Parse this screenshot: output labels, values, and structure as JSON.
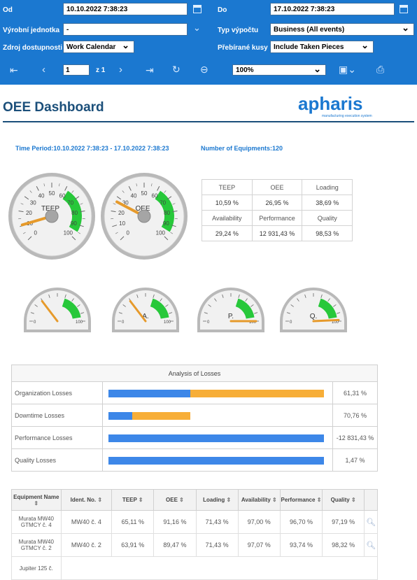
{
  "toolbar": {
    "od_label": "Od",
    "od_value": "10.10.2022 7:38:23",
    "do_label": "Do",
    "do_value": "17.10.2022 7:38:23",
    "unit_label": "Výrobní jednotka",
    "unit_value": "-",
    "calc_label": "Typ výpočtu",
    "calc_value": "Business (All events)",
    "source_label": "Zdroj dostupnosti",
    "source_value": "Work Calendar",
    "pieces_label": "Přebírané kusy",
    "pieces_value": "Include Taken Pieces",
    "page_value": "1",
    "page_of": "z 1",
    "zoom_value": "100%",
    "accent": "#1b78d0"
  },
  "report": {
    "title": "OEE Dashboard",
    "logo_text": "apharis",
    "logo_sub": "manufacturing execution system",
    "time_period": "Time Period:10.10.2022 7:38:23 - 17.10.2022 7:38:23",
    "equipments": "Number of Equipments:120",
    "gauges_top": [
      {
        "label": "TEEP",
        "value": 10.59
      },
      {
        "label": "OEE",
        "value": 26.95
      }
    ],
    "gauges_bottom": [
      {
        "label": "",
        "value": 29.24
      },
      {
        "label": "A.",
        "value": 29.24
      },
      {
        "label": "P.",
        "value": 100
      },
      {
        "label": "Q.",
        "value": 98.53
      }
    ],
    "gauge_ticks": [
      "0",
      "10",
      "20",
      "30",
      "40",
      "50",
      "60",
      "70",
      "80",
      "90",
      "100"
    ],
    "small_ticks": [
      "0",
      "100"
    ],
    "kpi": {
      "h1": [
        "TEEP",
        "OEE",
        "Loading"
      ],
      "v1": [
        "10,59 %",
        "26,95 %",
        "38,69 %"
      ],
      "h2": [
        "Availability",
        "Performance",
        "Quality"
      ],
      "v2": [
        "29,24 %",
        "12 931,43 %",
        "98,53 %"
      ]
    },
    "losses": {
      "title": "Analysis of Losses",
      "rows": [
        {
          "name": "Organization Losses",
          "value": "61,31 %",
          "blue": 38,
          "orange": 100
        },
        {
          "name": "Downtime Losses",
          "value": "70,76 %",
          "blue": 11,
          "orange": 38
        },
        {
          "name": "Performance Losses",
          "value": "-12 831,43 %",
          "blue": 100,
          "orange": 0
        },
        {
          "name": "Quality Losses",
          "value": "1,47 %",
          "blue": 100,
          "orange": 0
        }
      ]
    },
    "table": {
      "headers": [
        "Equipment Name",
        "Ident. No.",
        "TEEP",
        "OEE",
        "Loading",
        "Availability",
        "Performance",
        "Quality"
      ],
      "rows": [
        {
          "name": "Murata MW40 GTMCY č. 4",
          "ident": "MW40 č. 4",
          "teep": "65,11 %",
          "oee": "91,16 %",
          "loading": "71,43 %",
          "avail": "97,00 %",
          "perf": "96,70 %",
          "quality": "97,19 %"
        },
        {
          "name": "Murata MW40 GTMCY č. 2",
          "ident": "MW40 č. 2",
          "teep": "63,91 %",
          "oee": "89,47 %",
          "loading": "71,43 %",
          "avail": "97,07 %",
          "perf": "93,74 %",
          "quality": "98,32 %"
        }
      ],
      "partial_row_name": "Jupiter 125 č."
    }
  },
  "colors": {
    "blue": "#3d87e8",
    "orange": "#f7ae38",
    "green": "#27c83a",
    "needle": "#e69a2b"
  }
}
